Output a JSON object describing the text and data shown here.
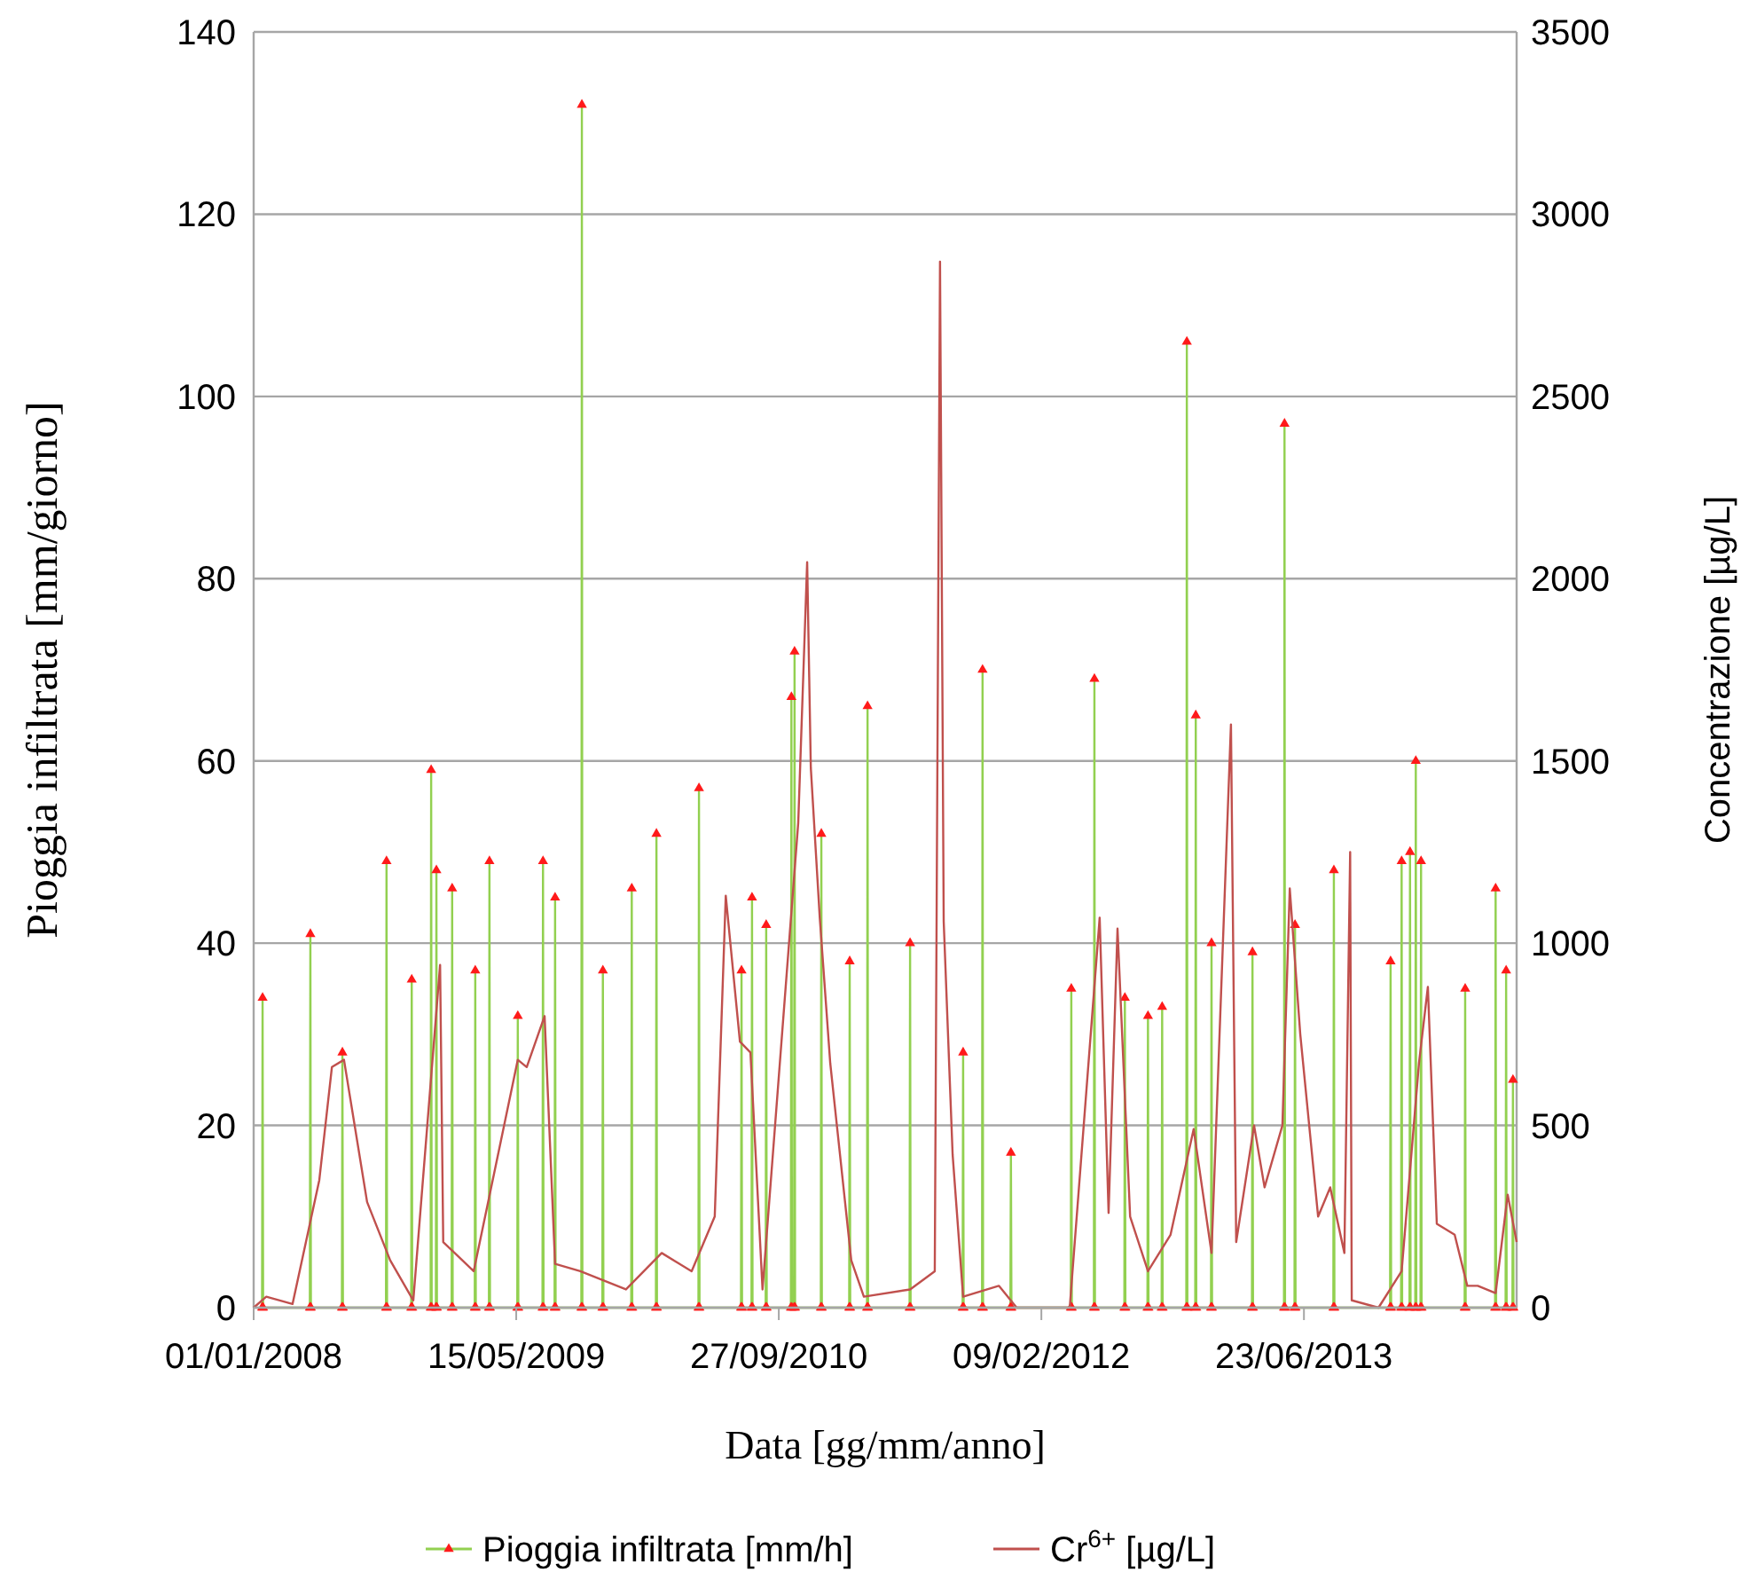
{
  "chart_data": {
    "type": "line",
    "xlabel": "Data [gg/mm/anno]",
    "ylabel": "Pioggia infiltrata [mm/giorno]",
    "y2label": "Concentrazione [µg/L]",
    "xlim": [
      "2008-01-01",
      "2014-08-02"
    ],
    "xticks": [
      {
        "value": "2008-01-01",
        "label": "01/01/2008"
      },
      {
        "value": "2009-05-15",
        "label": "15/05/2009"
      },
      {
        "value": "2010-09-27",
        "label": "27/09/2010"
      },
      {
        "value": "2012-02-09",
        "label": "09/02/2012"
      },
      {
        "value": "2013-06-23",
        "label": "23/06/2013"
      }
    ],
    "ylim": [
      0,
      140
    ],
    "yticks": [
      0,
      20,
      40,
      60,
      80,
      100,
      120,
      140
    ],
    "y2lim": [
      0,
      3500
    ],
    "y2ticks": [
      0,
      500,
      1000,
      1500,
      2000,
      2500,
      3000,
      3500
    ],
    "grid": "y",
    "legend": "bottom",
    "series": [
      {
        "name": "Pioggia infiltrata [mm/h]",
        "color": "#92d050",
        "marker": "triangle",
        "x": [
          "2008-01-17",
          "2008-01-18",
          "2008-01-19",
          "2008-04-17",
          "2008-04-18",
          "2008-04-19",
          "2008-06-17",
          "2008-06-18",
          "2008-06-19",
          "2008-09-09",
          "2008-09-10",
          "2008-09-11",
          "2008-10-27",
          "2008-10-28",
          "2008-10-29",
          "2008-12-03",
          "2008-12-04",
          "2008-12-05",
          "2008-12-13",
          "2008-12-14",
          "2008-12-15",
          "2009-01-12",
          "2009-01-13",
          "2009-01-14",
          "2009-02-25",
          "2009-02-26",
          "2009-02-27",
          "2009-03-24",
          "2009-03-25",
          "2009-03-26",
          "2009-05-17",
          "2009-05-18",
          "2009-05-19",
          "2009-07-04",
          "2009-07-05",
          "2009-07-06",
          "2009-07-27",
          "2009-07-28",
          "2009-07-29",
          "2009-09-16",
          "2009-09-17",
          "2009-09-18",
          "2009-10-26",
          "2009-10-27",
          "2009-10-28",
          "2009-12-20",
          "2009-12-21",
          "2009-12-22",
          "2010-02-05",
          "2010-02-06",
          "2010-02-07",
          "2010-04-27",
          "2010-04-28",
          "2010-04-29",
          "2010-07-17",
          "2010-07-18",
          "2010-07-19",
          "2010-08-06",
          "2010-08-07",
          "2010-08-08",
          "2010-09-02",
          "2010-09-03",
          "2010-09-04",
          "2010-10-20",
          "2010-10-21",
          "2010-10-22",
          "2010-10-26",
          "2010-10-27",
          "2010-10-28",
          "2010-12-16",
          "2010-12-17",
          "2010-12-18",
          "2011-02-08",
          "2011-02-09",
          "2011-02-10",
          "2011-03-14",
          "2011-03-15",
          "2011-03-16",
          "2011-06-03",
          "2011-06-04",
          "2011-06-05",
          "2011-09-12",
          "2011-09-13",
          "2011-09-14",
          "2011-10-19",
          "2011-10-20",
          "2011-10-21",
          "2011-12-12",
          "2011-12-13",
          "2011-12-14",
          "2012-04-05",
          "2012-04-06",
          "2012-04-07",
          "2012-05-19",
          "2012-05-20",
          "2012-05-21",
          "2012-07-16",
          "2012-07-17",
          "2012-07-18",
          "2012-08-29",
          "2012-08-30",
          "2012-08-31",
          "2012-09-25",
          "2012-09-26",
          "2012-09-27",
          "2012-11-11",
          "2012-11-12",
          "2012-11-13",
          "2012-11-28",
          "2012-11-29",
          "2012-11-30",
          "2012-12-28",
          "2012-12-29",
          "2012-12-30",
          "2013-03-16",
          "2013-03-17",
          "2013-03-18",
          "2013-05-16",
          "2013-05-17",
          "2013-05-18",
          "2013-06-05",
          "2013-06-06",
          "2013-06-07",
          "2013-08-18",
          "2013-08-19",
          "2013-08-20",
          "2013-12-04",
          "2013-12-05",
          "2013-12-06",
          "2013-12-25",
          "2013-12-26",
          "2013-12-27",
          "2014-01-10",
          "2014-01-11",
          "2014-01-12",
          "2014-01-21",
          "2014-01-22",
          "2014-01-23",
          "2014-01-31",
          "2014-02-01",
          "2014-02-02",
          "2014-04-25",
          "2014-04-26",
          "2014-04-27",
          "2014-06-22",
          "2014-06-23",
          "2014-06-24",
          "2014-07-12",
          "2014-07-13",
          "2014-07-14",
          "2014-07-25",
          "2014-07-26",
          "2014-07-27"
        ],
        "values": [
          0,
          34,
          0,
          0,
          41,
          0,
          0,
          28,
          0,
          0,
          49,
          0,
          0,
          36,
          0,
          0,
          59,
          0,
          0,
          48,
          0,
          0,
          46,
          0,
          0,
          37,
          0,
          0,
          49,
          0,
          0,
          32,
          0,
          0,
          49,
          0,
          0,
          45,
          0,
          0,
          132,
          0,
          0,
          37,
          0,
          0,
          46,
          0,
          0,
          52,
          0,
          0,
          57,
          0,
          0,
          37,
          0,
          0,
          45,
          0,
          0,
          42,
          0,
          0,
          67,
          0,
          0,
          72,
          0,
          0,
          52,
          0,
          0,
          38,
          0,
          0,
          66,
          0,
          0,
          40,
          0,
          0,
          28,
          0,
          0,
          70,
          0,
          0,
          17,
          0,
          0,
          35,
          0,
          0,
          69,
          0,
          0,
          34,
          0,
          0,
          32,
          0,
          0,
          33,
          0,
          0,
          106,
          0,
          0,
          65,
          0,
          0,
          40,
          0,
          0,
          39,
          0,
          0,
          97,
          0,
          0,
          42,
          0,
          0,
          48,
          0,
          0,
          38,
          0,
          0,
          49,
          0,
          0,
          50,
          0,
          0,
          60,
          0,
          0,
          49,
          0,
          0,
          35,
          0,
          0,
          46,
          0,
          0,
          37,
          0,
          0,
          25,
          0
        ]
      },
      {
        "name": "Cr$^{6+}$ [µg/L]",
        "color": "#c0504d",
        "axis": "y2",
        "marker": "none",
        "x": [
          "2008-01-01",
          "2008-01-25",
          "2008-03-15",
          "2008-05-05",
          "2008-05-29",
          "2008-06-21",
          "2008-08-04",
          "2008-09-17",
          "2008-10-31",
          "2008-12-21",
          "2008-12-27",
          "2009-02-23",
          "2009-05-18",
          "2009-06-04",
          "2009-07-08",
          "2009-07-28",
          "2009-09-14",
          "2009-12-10",
          "2010-02-16",
          "2010-04-14",
          "2010-05-28",
          "2010-06-18",
          "2010-07-15",
          "2010-08-04",
          "2010-08-27",
          "2010-11-03",
          "2010-11-20",
          "2010-11-27",
          "2010-12-14",
          "2011-01-03",
          "2011-02-12",
          "2011-03-08",
          "2011-06-04",
          "2011-07-21",
          "2011-07-31",
          "2011-08-07",
          "2011-08-24",
          "2011-09-13",
          "2011-11-20",
          "2011-12-24",
          "2012-04-03",
          "2012-05-30",
          "2012-06-16",
          "2012-07-03",
          "2012-07-27",
          "2012-08-30",
          "2012-10-12",
          "2012-11-25",
          "2012-12-29",
          "2013-02-04",
          "2013-02-14",
          "2013-03-20",
          "2013-04-09",
          "2013-05-13",
          "2013-05-27",
          "2013-06-16",
          "2013-07-20",
          "2013-08-12",
          "2013-09-08",
          "2013-09-19",
          "2013-09-22",
          "2013-11-12",
          "2013-12-26",
          "2014-01-28",
          "2014-02-14",
          "2014-03-03",
          "2014-04-06",
          "2014-04-30",
          "2014-05-20",
          "2014-06-23",
          "2014-07-16",
          "2014-08-02"
        ],
        "values": [
          0,
          30,
          10,
          350,
          660,
          680,
          290,
          130,
          20,
          940,
          180,
          100,
          680,
          660,
          800,
          120,
          100,
          50,
          150,
          100,
          250,
          1130,
          730,
          700,
          50,
          1330,
          2045,
          1480,
          1070,
          670,
          130,
          30,
          50,
          100,
          2870,
          1060,
          420,
          30,
          60,
          0,
          0,
          1070,
          260,
          1040,
          250,
          100,
          200,
          490,
          150,
          1600,
          180,
          500,
          330,
          500,
          1150,
          750,
          250,
          330,
          150,
          1250,
          20,
          0,
          100,
          670,
          880,
          230,
          200,
          60,
          60,
          40,
          310,
          180
        ]
      }
    ]
  }
}
